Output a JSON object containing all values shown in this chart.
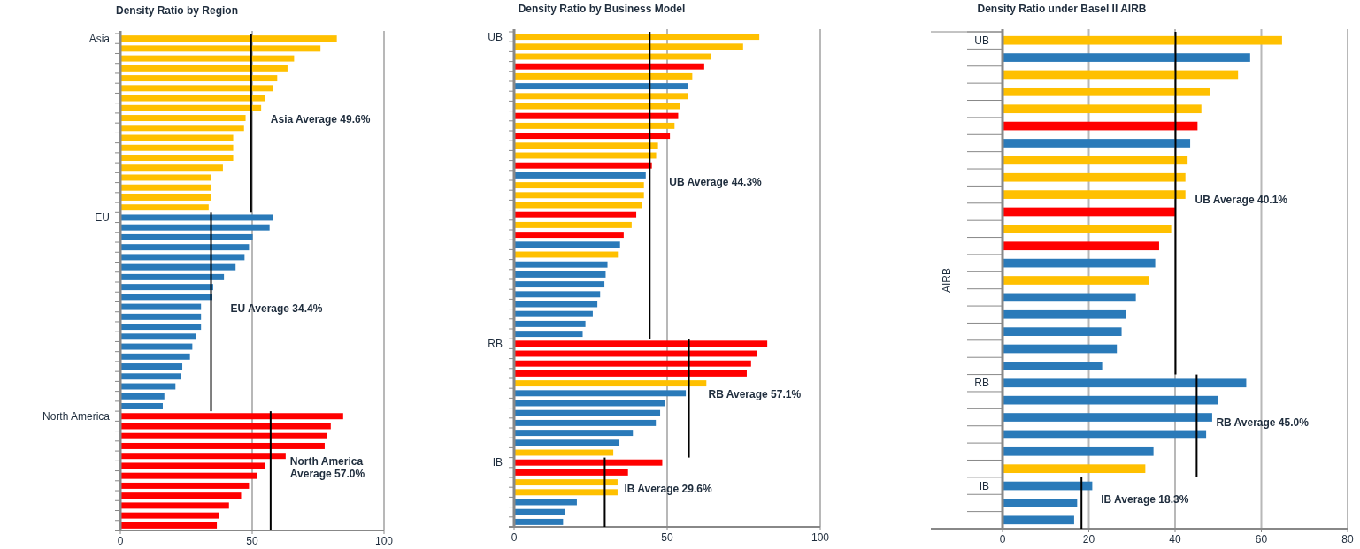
{
  "chart_data": [
    {
      "type": "bar",
      "orientation": "horizontal",
      "title": "Density Ratio by Region",
      "grid": "x",
      "xlim": [
        0,
        100
      ],
      "xticks": [
        0,
        50,
        100
      ],
      "categories": [
        "Asia",
        null,
        null,
        null,
        null,
        null,
        null,
        null,
        null,
        null,
        null,
        null,
        null,
        null,
        null,
        null,
        null,
        null,
        "EU",
        null,
        null,
        null,
        null,
        null,
        null,
        null,
        null,
        null,
        null,
        null,
        null,
        null,
        null,
        null,
        null,
        null,
        null,
        null,
        "North America",
        null,
        null,
        null,
        null,
        null,
        null,
        null,
        null,
        null,
        null,
        null
      ],
      "values": [
        82.1,
        75.9,
        65.9,
        63.4,
        59.5,
        58,
        55,
        53.4,
        47.5,
        46.9,
        42.8,
        42.8,
        42.8,
        38.9,
        34.3,
        34.3,
        34.3,
        33.5,
        58,
        56.6,
        50.2,
        48.8,
        47.1,
        43.7,
        39.3,
        35.2,
        34.9,
        30.6,
        30.6,
        30.6,
        28.6,
        27.3,
        26.4,
        23.5,
        22.9,
        20.9,
        16.7,
        16.1,
        84.5,
        79.8,
        78.2,
        77.5,
        62.7,
        55,
        51.9,
        48.8,
        45.8,
        41.2,
        37.3,
        36.6
      ],
      "colors": [
        "#ffc000",
        "#ffc000",
        "#ffc000",
        "#ffc000",
        "#ffc000",
        "#ffc000",
        "#ffc000",
        "#ffc000",
        "#ffc000",
        "#ffc000",
        "#ffc000",
        "#ffc000",
        "#ffc000",
        "#ffc000",
        "#ffc000",
        "#ffc000",
        "#ffc000",
        "#ffc000",
        "#2a7ab9",
        "#2a7ab9",
        "#2a7ab9",
        "#2a7ab9",
        "#2a7ab9",
        "#2a7ab9",
        "#2a7ab9",
        "#2a7ab9",
        "#2a7ab9",
        "#2a7ab9",
        "#2a7ab9",
        "#2a7ab9",
        "#2a7ab9",
        "#2a7ab9",
        "#2a7ab9",
        "#2a7ab9",
        "#2a7ab9",
        "#2a7ab9",
        "#2a7ab9",
        "#2a7ab9",
        "#ff0000",
        "#ff0000",
        "#ff0000",
        "#ff0000",
        "#ff0000",
        "#ff0000",
        "#ff0000",
        "#ff0000",
        "#ff0000",
        "#ff0000",
        "#ff0000",
        "#ff0000"
      ],
      "ref_lines": [
        {
          "axis": "x",
          "value": 49.6,
          "label": "Asia Average 49.6%",
          "color": "#000000"
        },
        {
          "axis": "x",
          "value": 34.4,
          "label": "EU Average 34.4%",
          "color": "#000000"
        },
        {
          "axis": "x",
          "value": 57.0,
          "label": "North America Average 57.0%",
          "color": "#000000"
        }
      ]
    },
    {
      "type": "bar",
      "orientation": "horizontal",
      "title": "Density Ratio by Business Model",
      "grid": "x",
      "xlim": [
        0,
        100
      ],
      "xticks": [
        0,
        50,
        100
      ],
      "categories": [
        "UB",
        null,
        null,
        null,
        null,
        null,
        null,
        null,
        null,
        null,
        null,
        null,
        null,
        null,
        null,
        null,
        null,
        null,
        null,
        null,
        null,
        null,
        null,
        null,
        null,
        null,
        null,
        null,
        null,
        null,
        null,
        "RB",
        null,
        null,
        null,
        null,
        null,
        null,
        null,
        null,
        null,
        null,
        null,
        "IB",
        null,
        null,
        null,
        null,
        null,
        null
      ],
      "values": [
        80.1,
        74.8,
        64.2,
        62.1,
        58.2,
        56.9,
        56.9,
        54.3,
        53.6,
        52.4,
        50.9,
        47.0,
        46.4,
        45.0,
        43.0,
        42.4,
        42.4,
        41.7,
        39.9,
        38.4,
        35.8,
        34.6,
        33.9,
        30.5,
        29.9,
        29.5,
        28.1,
        27.2,
        25.7,
        23.3,
        22.4,
        82.7,
        79.4,
        77.4,
        76.0,
        62.8,
        56.1,
        49.3,
        47.7,
        46.3,
        38.8,
        34.4,
        32.4,
        48.4,
        37.2,
        33.8,
        33.8,
        20.5,
        16.7,
        16.0
      ],
      "colors": [
        "#ffc000",
        "#ffc000",
        "#ffc000",
        "#ff0000",
        "#ffc000",
        "#2a7ab9",
        "#ffc000",
        "#ffc000",
        "#ff0000",
        "#ffc000",
        "#ff0000",
        "#ffc000",
        "#ffc000",
        "#ff0000",
        "#2a7ab9",
        "#ffc000",
        "#ffc000",
        "#ffc000",
        "#ff0000",
        "#ffc000",
        "#ff0000",
        "#2a7ab9",
        "#ffc000",
        "#2a7ab9",
        "#2a7ab9",
        "#2a7ab9",
        "#2a7ab9",
        "#2a7ab9",
        "#2a7ab9",
        "#2a7ab9",
        "#2a7ab9",
        "#ff0000",
        "#ff0000",
        "#ff0000",
        "#ff0000",
        "#ffc000",
        "#2a7ab9",
        "#2a7ab9",
        "#2a7ab9",
        "#2a7ab9",
        "#2a7ab9",
        "#2a7ab9",
        "#ffc000",
        "#ff0000",
        "#ff0000",
        "#ffc000",
        "#ffc000",
        "#2a7ab9",
        "#2a7ab9",
        "#2a7ab9"
      ],
      "ref_lines": [
        {
          "axis": "x",
          "value": 44.3,
          "label": "UB Average 44.3%",
          "color": "#000000"
        },
        {
          "axis": "x",
          "value": 57.1,
          "label": "RB Average 57.1%",
          "color": "#000000"
        },
        {
          "axis": "x",
          "value": 29.6,
          "label": "IB Average 29.6%",
          "color": "#000000"
        }
      ]
    },
    {
      "type": "bar",
      "orientation": "horizontal",
      "title": "Density Ratio under Basel II AIRB",
      "ylabel": "AIRB",
      "grid": "x",
      "xlim": [
        0,
        80
      ],
      "xticks": [
        0,
        20,
        40,
        60,
        80
      ],
      "categories": [
        "UB",
        null,
        null,
        null,
        null,
        null,
        null,
        null,
        null,
        null,
        null,
        null,
        null,
        null,
        null,
        null,
        null,
        null,
        null,
        null,
        "RB",
        null,
        null,
        null,
        null,
        null,
        "IB",
        null,
        null
      ],
      "values": [
        64.8,
        57.4,
        54.6,
        48.0,
        46.1,
        45.2,
        43.5,
        42.9,
        42.4,
        42.4,
        40.0,
        39.1,
        36.3,
        35.4,
        34.0,
        30.9,
        28.6,
        27.6,
        26.5,
        23.1,
        56.5,
        49.9,
        48.6,
        47.2,
        35.0,
        33.1,
        20.8,
        17.3,
        16.6
      ],
      "colors": [
        "#ffc000",
        "#2a7ab9",
        "#ffc000",
        "#ffc000",
        "#ffc000",
        "#ff0000",
        "#2a7ab9",
        "#ffc000",
        "#ffc000",
        "#ffc000",
        "#ff0000",
        "#ffc000",
        "#ff0000",
        "#2a7ab9",
        "#ffc000",
        "#2a7ab9",
        "#2a7ab9",
        "#2a7ab9",
        "#2a7ab9",
        "#2a7ab9",
        "#2a7ab9",
        "#2a7ab9",
        "#2a7ab9",
        "#2a7ab9",
        "#2a7ab9",
        "#ffc000",
        "#2a7ab9",
        "#2a7ab9",
        "#2a7ab9"
      ],
      "ref_lines": [
        {
          "axis": "x",
          "value": 40.1,
          "label": "UB Average 40.1%",
          "color": "#000000"
        },
        {
          "axis": "x",
          "value": 45.0,
          "label": "RB Average 45.0%",
          "color": "#000000"
        },
        {
          "axis": "x",
          "value": 18.3,
          "label": "IB Average 18.3%",
          "color": "#000000"
        }
      ]
    }
  ]
}
